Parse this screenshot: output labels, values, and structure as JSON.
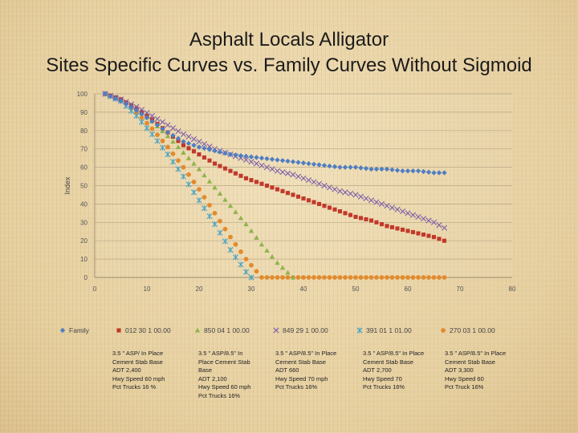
{
  "slide": {
    "title_line1": "Asphalt Locals Alligator",
    "title_line2": "Sites Specific Curves vs. Family Curves Without Sigmoid"
  },
  "chart_data": {
    "type": "scatter",
    "ylabel": "Index",
    "xlim": [
      0,
      80
    ],
    "ylim": [
      0,
      100
    ],
    "x_ticks": [
      0,
      10,
      20,
      30,
      40,
      50,
      60,
      70,
      80
    ],
    "y_ticks": [
      0,
      10,
      20,
      30,
      40,
      50,
      60,
      70,
      80,
      90,
      100
    ],
    "grid": true,
    "legend_position": "bottom",
    "series": [
      {
        "name": "Family",
        "marker": "diamond",
        "color": "#4f7ec2",
        "x": [
          2,
          5,
          8,
          11,
          14,
          17,
          20,
          23,
          26,
          29,
          32,
          35,
          38,
          41,
          44,
          47,
          50,
          53,
          56,
          59,
          62,
          65,
          67
        ],
        "y": [
          100,
          96,
          91,
          85,
          79,
          74,
          71,
          69,
          67,
          66,
          65,
          64,
          63,
          62,
          61,
          60,
          60,
          59,
          59,
          58,
          58,
          57,
          57
        ]
      },
      {
        "name": "012 30 1 00.00",
        "marker": "square",
        "color": "#c0392b",
        "x": [
          2,
          5,
          8,
          11,
          14,
          17,
          20,
          23,
          26,
          29,
          32,
          35,
          38,
          41,
          44,
          47,
          50,
          53,
          56,
          59,
          62,
          65,
          67
        ],
        "y": [
          100,
          97,
          92,
          86,
          79,
          72,
          67,
          62,
          58,
          54,
          51,
          48,
          45,
          42,
          39,
          36,
          33,
          31,
          28,
          26,
          24,
          22,
          20
        ]
      },
      {
        "name": "850 04 1 00.00",
        "marker": "triangle",
        "color": "#8fb34a",
        "x": [
          2,
          5,
          8,
          11,
          14,
          17,
          20,
          23,
          26,
          29,
          32,
          35,
          38
        ],
        "y": [
          100,
          97,
          92,
          85,
          77,
          68,
          59,
          49,
          39,
          29,
          18,
          8,
          0
        ]
      },
      {
        "name": "849 29 1 00.00",
        "marker": "x",
        "color": "#7b5ea8",
        "x": [
          2,
          5,
          8,
          11,
          14,
          17,
          20,
          23,
          26,
          29,
          32,
          35,
          38,
          41,
          44,
          47,
          50,
          53,
          56,
          59,
          62,
          65,
          67
        ],
        "y": [
          100,
          97,
          93,
          88,
          83,
          78,
          74,
          70,
          67,
          64,
          61,
          58,
          56,
          53,
          50,
          47,
          45,
          42,
          39,
          36,
          33,
          30,
          27
        ]
      },
      {
        "name": "391 01 1 01.00",
        "marker": "star",
        "color": "#4aa3c2",
        "x": [
          2,
          5,
          8,
          11,
          14,
          17,
          20,
          23,
          26,
          29,
          30
        ],
        "y": [
          100,
          96,
          88,
          78,
          67,
          55,
          42,
          29,
          15,
          3,
          0
        ]
      },
      {
        "name": "270 03 1 00.00",
        "marker": "circle",
        "color": "#e38a2c",
        "x": [
          2,
          5,
          8,
          11,
          14,
          17,
          20,
          23,
          26,
          29,
          32,
          35,
          38,
          41,
          44,
          47,
          50,
          53,
          56,
          59,
          62,
          65,
          67
        ],
        "y": [
          100,
          97,
          90,
          81,
          71,
          60,
          48,
          35,
          22,
          10,
          0,
          0,
          0,
          0,
          0,
          0,
          0,
          0,
          0,
          0,
          0,
          0,
          0
        ]
      }
    ]
  },
  "notes": [
    "3.5 \" ASP/ In Place\nCement Stab Base\nADT 2,400\nHwy Speed 60 mph\nPct Trucks 16 %",
    "3.5 \" ASP/8.5\" In\nPlace Cement Stab\nBase\nADT 2,100\nHwy Speed 60 mph\nPct Trucks 16%",
    "3.5 \" ASP/8.5\" In Place\nCement Stab Base\nADT 660\nHwy Speed 70 mph\nPct Trucks 16%",
    "3.5 \" ASP/8.5\" In Place\nCement Stab Base\nADT 2,700\nHwy Speed 70\nPct Trucks 16%",
    "3.5 \" ASP/8.5\" In Place\nCement Stab Base\nADT 3,300\nHwy Speed 60\nPct Truck 16%"
  ]
}
